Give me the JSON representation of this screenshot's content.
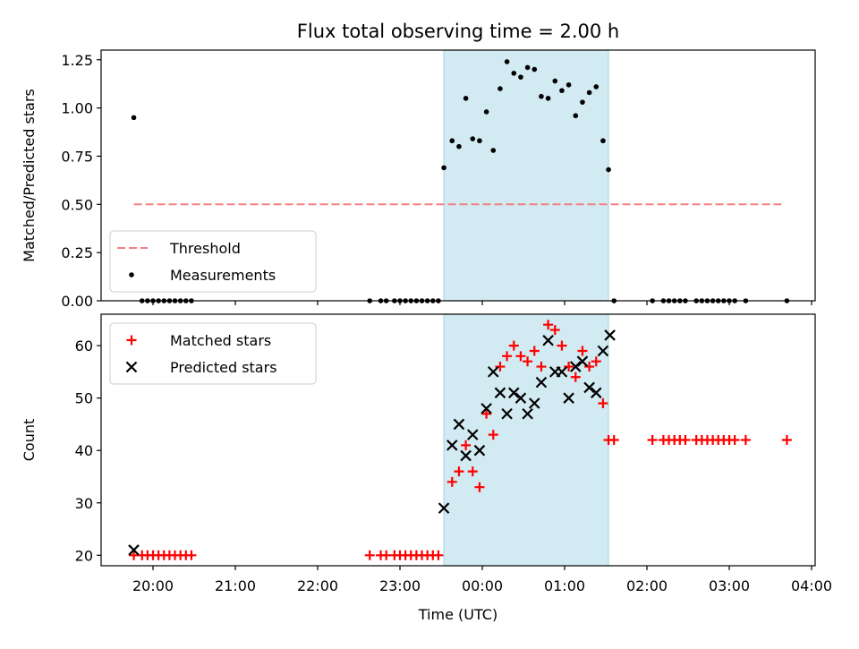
{
  "chart_data": {
    "title": "Flux total observing time = 2.00 h",
    "xlabel": "Time (UTC)",
    "x_ticks": [
      "20:00",
      "21:00",
      "22:00",
      "23:00",
      "00:00",
      "01:00",
      "02:00",
      "03:00",
      "04:00"
    ],
    "shaded_region": {
      "start": "23:32",
      "end": "01:32",
      "color": "#add8e6"
    },
    "panels": [
      {
        "type": "scatter",
        "ylabel": "Matched/Predicted stars",
        "ylim": [
          0,
          1.3
        ],
        "y_ticks": [
          "0.00",
          "0.25",
          "0.50",
          "0.75",
          "1.00",
          "1.25"
        ],
        "legend": {
          "position": "lower-left"
        },
        "threshold": {
          "name": "Threshold",
          "value": 0.5,
          "x_start": "19:46",
          "x_end": "03:38",
          "color": "#f08080",
          "style": "dashed"
        },
        "series": [
          {
            "name": "Measurements",
            "marker": "dot",
            "color": "#000000",
            "points": [
              [
                "19:46",
                0.95
              ],
              [
                "19:52",
                0.0
              ],
              [
                "19:56",
                0.0
              ],
              [
                "20:00",
                0.0
              ],
              [
                "20:04",
                0.0
              ],
              [
                "20:08",
                0.0
              ],
              [
                "20:12",
                0.0
              ],
              [
                "20:16",
                0.0
              ],
              [
                "20:20",
                0.0
              ],
              [
                "20:24",
                0.0
              ],
              [
                "20:28",
                0.0
              ],
              [
                "22:38",
                0.0
              ],
              [
                "22:46",
                0.0
              ],
              [
                "22:50",
                0.0
              ],
              [
                "22:56",
                0.0
              ],
              [
                "23:00",
                0.0
              ],
              [
                "23:04",
                0.0
              ],
              [
                "23:08",
                0.0
              ],
              [
                "23:12",
                0.0
              ],
              [
                "23:16",
                0.0
              ],
              [
                "23:20",
                0.0
              ],
              [
                "23:24",
                0.0
              ],
              [
                "23:28",
                0.0
              ],
              [
                "23:32",
                0.69
              ],
              [
                "23:38",
                0.83
              ],
              [
                "23:43",
                0.8
              ],
              [
                "23:48",
                1.05
              ],
              [
                "23:53",
                0.84
              ],
              [
                "23:58",
                0.83
              ],
              [
                "00:03",
                0.98
              ],
              [
                "00:08",
                0.78
              ],
              [
                "00:13",
                1.1
              ],
              [
                "00:18",
                1.24
              ],
              [
                "00:23",
                1.18
              ],
              [
                "00:28",
                1.16
              ],
              [
                "00:33",
                1.21
              ],
              [
                "00:38",
                1.2
              ],
              [
                "00:43",
                1.06
              ],
              [
                "00:48",
                1.05
              ],
              [
                "00:53",
                1.14
              ],
              [
                "00:58",
                1.09
              ],
              [
                "01:03",
                1.12
              ],
              [
                "01:08",
                0.96
              ],
              [
                "01:13",
                1.03
              ],
              [
                "01:18",
                1.08
              ],
              [
                "01:23",
                1.11
              ],
              [
                "01:28",
                0.83
              ],
              [
                "01:32",
                0.68
              ],
              [
                "01:36",
                0.0
              ],
              [
                "02:04",
                0.0
              ],
              [
                "02:12",
                0.0
              ],
              [
                "02:16",
                0.0
              ],
              [
                "02:20",
                0.0
              ],
              [
                "02:24",
                0.0
              ],
              [
                "02:28",
                0.0
              ],
              [
                "02:36",
                0.0
              ],
              [
                "02:40",
                0.0
              ],
              [
                "02:44",
                0.0
              ],
              [
                "02:48",
                0.0
              ],
              [
                "02:52",
                0.0
              ],
              [
                "02:56",
                0.0
              ],
              [
                "03:00",
                0.0
              ],
              [
                "03:04",
                0.0
              ],
              [
                "03:12",
                0.0
              ],
              [
                "03:42",
                0.0
              ]
            ]
          }
        ]
      },
      {
        "type": "scatter",
        "ylabel": "Count",
        "ylim": [
          18,
          66
        ],
        "y_ticks": [
          "20",
          "30",
          "40",
          "50",
          "60"
        ],
        "legend": {
          "position": "upper-left"
        },
        "series": [
          {
            "name": "Matched stars",
            "marker": "plus",
            "color": "#ff0000",
            "points": [
              [
                "19:46",
                20
              ],
              [
                "19:52",
                20
              ],
              [
                "19:56",
                20
              ],
              [
                "20:00",
                20
              ],
              [
                "20:04",
                20
              ],
              [
                "20:08",
                20
              ],
              [
                "20:12",
                20
              ],
              [
                "20:16",
                20
              ],
              [
                "20:20",
                20
              ],
              [
                "20:24",
                20
              ],
              [
                "20:28",
                20
              ],
              [
                "22:38",
                20
              ],
              [
                "22:46",
                20
              ],
              [
                "22:50",
                20
              ],
              [
                "22:56",
                20
              ],
              [
                "23:00",
                20
              ],
              [
                "23:04",
                20
              ],
              [
                "23:08",
                20
              ],
              [
                "23:12",
                20
              ],
              [
                "23:16",
                20
              ],
              [
                "23:20",
                20
              ],
              [
                "23:24",
                20
              ],
              [
                "23:28",
                20
              ],
              [
                "23:38",
                34
              ],
              [
                "23:43",
                36
              ],
              [
                "23:48",
                41
              ],
              [
                "23:53",
                36
              ],
              [
                "23:58",
                33
              ],
              [
                "00:03",
                47
              ],
              [
                "00:08",
                43
              ],
              [
                "00:13",
                56
              ],
              [
                "00:18",
                58
              ],
              [
                "00:23",
                60
              ],
              [
                "00:28",
                58
              ],
              [
                "00:33",
                57
              ],
              [
                "00:38",
                59
              ],
              [
                "00:43",
                56
              ],
              [
                "00:48",
                64
              ],
              [
                "00:53",
                63
              ],
              [
                "00:58",
                60
              ],
              [
                "01:03",
                56
              ],
              [
                "01:08",
                54
              ],
              [
                "01:13",
                59
              ],
              [
                "01:18",
                56
              ],
              [
                "01:23",
                57
              ],
              [
                "01:28",
                49
              ],
              [
                "01:32",
                42
              ],
              [
                "01:36",
                42
              ],
              [
                "02:04",
                42
              ],
              [
                "02:12",
                42
              ],
              [
                "02:16",
                42
              ],
              [
                "02:20",
                42
              ],
              [
                "02:24",
                42
              ],
              [
                "02:28",
                42
              ],
              [
                "02:36",
                42
              ],
              [
                "02:40",
                42
              ],
              [
                "02:44",
                42
              ],
              [
                "02:48",
                42
              ],
              [
                "02:52",
                42
              ],
              [
                "02:56",
                42
              ],
              [
                "03:00",
                42
              ],
              [
                "03:04",
                42
              ],
              [
                "03:12",
                42
              ],
              [
                "03:42",
                42
              ]
            ]
          },
          {
            "name": "Predicted stars",
            "marker": "x",
            "color": "#000000",
            "points": [
              [
                "19:46",
                21
              ],
              [
                "23:32",
                29
              ],
              [
                "23:38",
                41
              ],
              [
                "23:43",
                45
              ],
              [
                "23:48",
                39
              ],
              [
                "23:53",
                43
              ],
              [
                "23:58",
                40
              ],
              [
                "00:03",
                48
              ],
              [
                "00:08",
                55
              ],
              [
                "00:13",
                51
              ],
              [
                "00:18",
                47
              ],
              [
                "00:23",
                51
              ],
              [
                "00:28",
                50
              ],
              [
                "00:33",
                47
              ],
              [
                "00:38",
                49
              ],
              [
                "00:43",
                53
              ],
              [
                "00:48",
                61
              ],
              [
                "00:53",
                55
              ],
              [
                "00:58",
                55
              ],
              [
                "01:03",
                50
              ],
              [
                "01:08",
                56
              ],
              [
                "01:13",
                57
              ],
              [
                "01:18",
                52
              ],
              [
                "01:23",
                51
              ],
              [
                "01:28",
                59
              ],
              [
                "01:33",
                62
              ]
            ]
          }
        ]
      }
    ]
  }
}
